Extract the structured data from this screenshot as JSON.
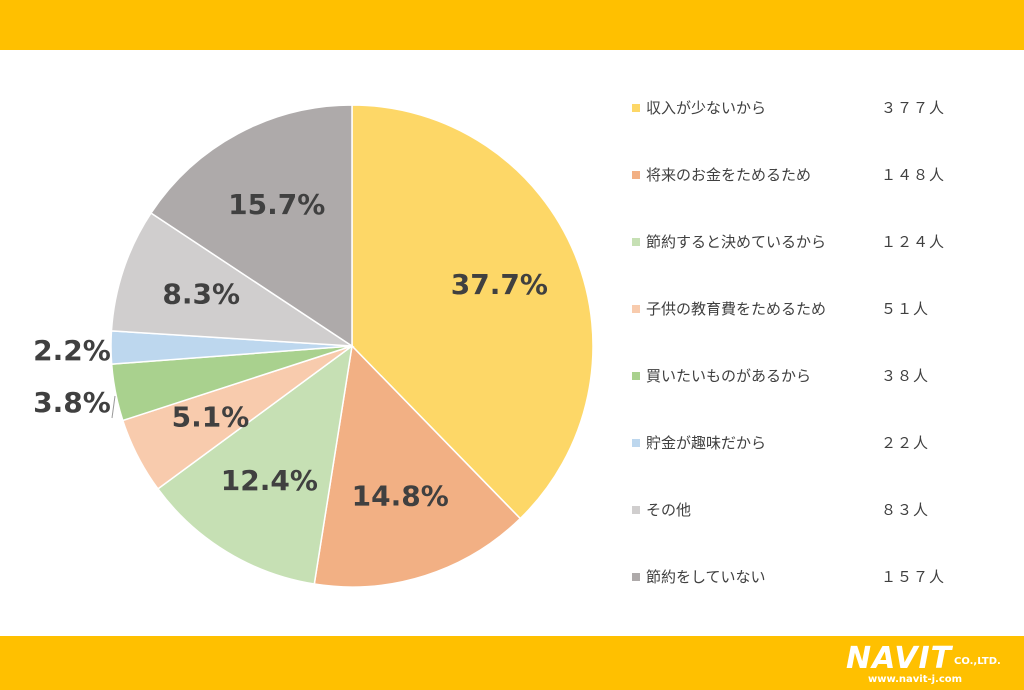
{
  "chart_data": {
    "type": "pie",
    "start_angle_deg": 0,
    "direction": "clockwise",
    "slices": [
      {
        "label": "収入が少ないから",
        "count": "３７７人",
        "percent": 37.7,
        "percent_label": "37.7%",
        "color": "#fdd767"
      },
      {
        "label": "将来のお金をためるため",
        "count": "１４８人",
        "percent": 14.8,
        "percent_label": "14.8%",
        "color": "#f2b084"
      },
      {
        "label": "節約すると決めているから",
        "count": "１２４人",
        "percent": 12.4,
        "percent_label": "12.4%",
        "color": "#c6e0b4"
      },
      {
        "label": "子供の教育費をためるため",
        "count": "５１人",
        "percent": 5.1,
        "percent_label": "5.1%",
        "color": "#f8cbad"
      },
      {
        "label": "買いたいものがあるから",
        "count": "３８人",
        "percent": 3.8,
        "percent_label": "3.8%",
        "color": "#a9d18e"
      },
      {
        "label": "貯金が趣味だから",
        "count": "２２人",
        "percent": 2.2,
        "percent_label": "2.2%",
        "color": "#bdd7ee"
      },
      {
        "label": "その他",
        "count": "８３人",
        "percent": 8.3,
        "percent_label": "8.3%",
        "color": "#d0cece"
      },
      {
        "label": "節約をしていない",
        "count": "１５７人",
        "percent": 15.7,
        "percent_label": "15.7%",
        "color": "#aeaaaa"
      }
    ],
    "legend_position": "right"
  },
  "logo": {
    "name": "NAVIT",
    "suffix": "CO.,LTD.",
    "url": "www.navit-j.com"
  },
  "colors": {
    "band": "#ffc000",
    "text": "#404040"
  }
}
